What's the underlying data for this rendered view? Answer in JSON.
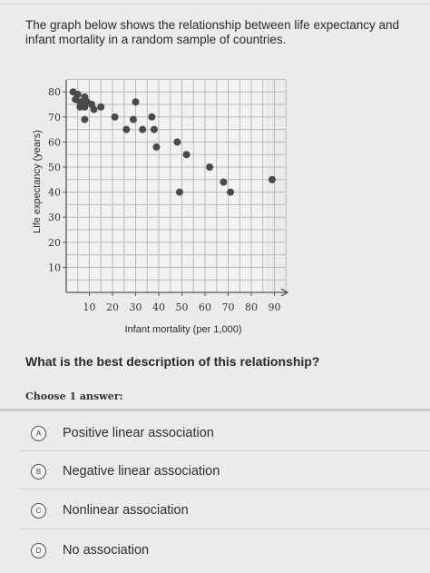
{
  "intro": "The graph below shows the relationship between life expectancy and infant mortality in a random sample of countries.",
  "question": "What is the best description of this relationship?",
  "choose_label": "Choose 1 answer:",
  "choices": [
    {
      "letter": "A",
      "text": "Positive linear association"
    },
    {
      "letter": "B",
      "text": "Negative linear association"
    },
    {
      "letter": "C",
      "text": "Nonlinear association"
    },
    {
      "letter": "D",
      "text": "No association"
    }
  ],
  "chart_data": {
    "type": "scatter",
    "xlabel": "Infant mortality (per 1,000)",
    "ylabel": "Life expectancy (years)",
    "xlim": [
      0,
      100
    ],
    "ylim": [
      0,
      85
    ],
    "xticks": [
      10,
      20,
      30,
      40,
      50,
      60,
      70,
      80,
      90
    ],
    "yticks": [
      10,
      20,
      30,
      40,
      50,
      60,
      70,
      80
    ],
    "grid": true,
    "point_color": "#4a4a4a",
    "points": [
      {
        "x": 3,
        "y": 80
      },
      {
        "x": 5,
        "y": 79
      },
      {
        "x": 4,
        "y": 77
      },
      {
        "x": 6,
        "y": 76
      },
      {
        "x": 8,
        "y": 78
      },
      {
        "x": 9,
        "y": 76
      },
      {
        "x": 6,
        "y": 74
      },
      {
        "x": 8,
        "y": 74
      },
      {
        "x": 11,
        "y": 75
      },
      {
        "x": 12,
        "y": 73
      },
      {
        "x": 15,
        "y": 74
      },
      {
        "x": 8,
        "y": 69
      },
      {
        "x": 21,
        "y": 70
      },
      {
        "x": 26,
        "y": 65
      },
      {
        "x": 30,
        "y": 76
      },
      {
        "x": 29,
        "y": 69
      },
      {
        "x": 33,
        "y": 65
      },
      {
        "x": 37,
        "y": 70
      },
      {
        "x": 38,
        "y": 65
      },
      {
        "x": 39,
        "y": 58
      },
      {
        "x": 48,
        "y": 60
      },
      {
        "x": 52,
        "y": 55
      },
      {
        "x": 49,
        "y": 40
      },
      {
        "x": 62,
        "y": 50
      },
      {
        "x": 68,
        "y": 44
      },
      {
        "x": 71,
        "y": 40
      },
      {
        "x": 89,
        "y": 45
      }
    ]
  }
}
